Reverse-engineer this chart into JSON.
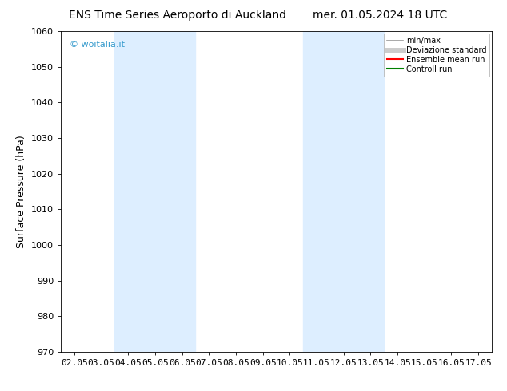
{
  "title_left": "ENS Time Series Aeroporto di Auckland",
  "title_right": "mer. 01.05.2024 18 UTC",
  "ylabel": "Surface Pressure (hPa)",
  "ylim": [
    970,
    1060
  ],
  "yticks": [
    970,
    980,
    990,
    1000,
    1010,
    1020,
    1030,
    1040,
    1050,
    1060
  ],
  "xtick_labels": [
    "02.05",
    "03.05",
    "04.05",
    "05.05",
    "06.05",
    "07.05",
    "08.05",
    "09.05",
    "10.05",
    "11.05",
    "12.05",
    "13.05",
    "14.05",
    "15.05",
    "16.05",
    "17.05"
  ],
  "xtick_positions": [
    0,
    1,
    2,
    3,
    4,
    5,
    6,
    7,
    8,
    9,
    10,
    11,
    12,
    13,
    14,
    15
  ],
  "xlim": [
    -0.5,
    15.5
  ],
  "shaded_bands": [
    {
      "xmin": 1.5,
      "xmax": 4.5,
      "color": "#ddeeff"
    },
    {
      "xmin": 8.5,
      "xmax": 11.5,
      "color": "#ddeeff"
    }
  ],
  "watermark_text": "© woitalia.it",
  "watermark_color": "#3399cc",
  "legend_entries": [
    {
      "label": "min/max",
      "color": "#999999",
      "lw": 1.2,
      "ls": "-"
    },
    {
      "label": "Deviazione standard",
      "color": "#cccccc",
      "lw": 5,
      "ls": "-"
    },
    {
      "label": "Ensemble mean run",
      "color": "red",
      "lw": 1.5,
      "ls": "-"
    },
    {
      "label": "Controll run",
      "color": "green",
      "lw": 1.5,
      "ls": "-"
    }
  ],
  "bg_color": "#ffffff",
  "title_fontsize": 10,
  "axis_label_fontsize": 9,
  "tick_fontsize": 8,
  "legend_fontsize": 7,
  "watermark_fontsize": 8
}
